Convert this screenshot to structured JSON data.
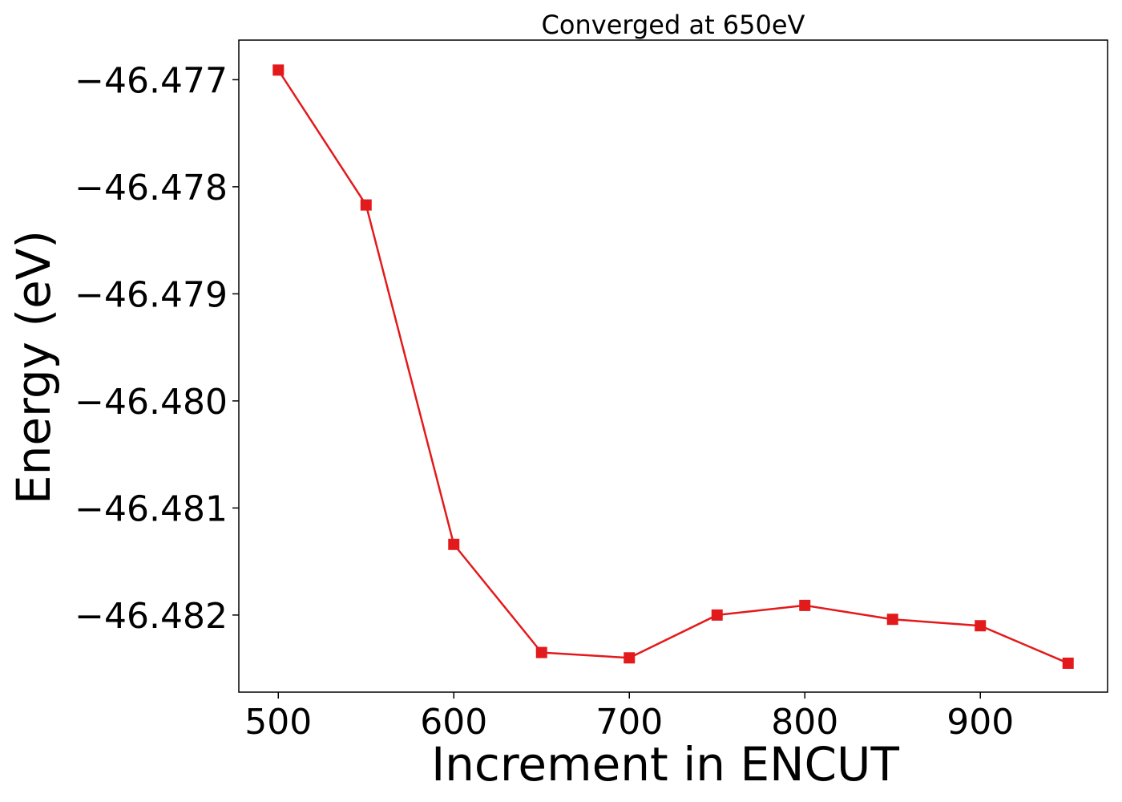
{
  "chart_data": {
    "type": "line",
    "title": "Converged at 650eV",
    "xlabel": "Increment in ENCUT",
    "ylabel": "Energy (eV)",
    "x": [
      500,
      550,
      600,
      650,
      700,
      750,
      800,
      850,
      900,
      950
    ],
    "series": [
      {
        "values": [
          -46.47691,
          -46.47817,
          -46.48134,
          -46.48235,
          -46.4824,
          -46.482,
          -46.48191,
          -46.48204,
          -46.4821,
          -46.48245
        ]
      }
    ],
    "xlim": [
      477.5,
      972.5
    ],
    "ylim": [
      -46.48272,
      -46.47663
    ],
    "xticks": [
      500,
      600,
      700,
      800,
      900
    ],
    "xtick_labels": [
      "500",
      "600",
      "700",
      "800",
      "900"
    ],
    "yticks": [
      -46.477,
      -46.478,
      -46.479,
      -46.48,
      -46.481,
      -46.482
    ],
    "ytick_labels": [
      "−46.477",
      "−46.478",
      "−46.479",
      "−46.480",
      "−46.481",
      "−46.482"
    ],
    "grid": false,
    "legend": false,
    "line_color": "#e31a1c",
    "marker": "square"
  }
}
